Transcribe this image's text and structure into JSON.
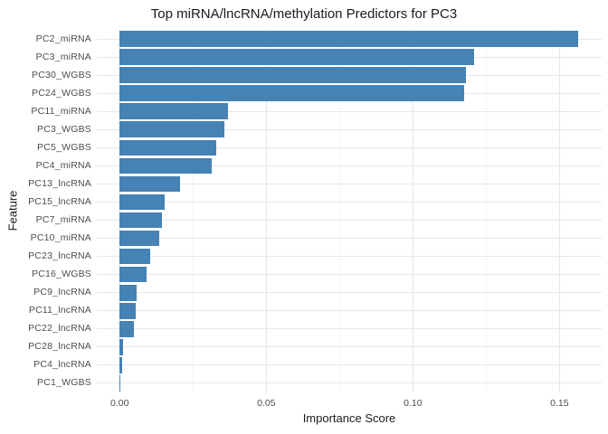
{
  "chart_data": {
    "type": "bar",
    "orientation": "horizontal",
    "title": "Top miRNA/lncRNA/methylation Predictors for PC3",
    "xlabel": "Importance Score",
    "ylabel": "Feature",
    "categories": [
      "PC2_miRNA",
      "PC3_miRNA",
      "PC30_WGBS",
      "PC24_WGBS",
      "PC11_miRNA",
      "PC3_WGBS",
      "PC5_WGBS",
      "PC4_miRNA",
      "PC13_lncRNA",
      "PC15_lncRNA",
      "PC7_miRNA",
      "PC10_miRNA",
      "PC23_lncRNA",
      "PC16_WGBS",
      "PC9_lncRNA",
      "PC11_lncRNA",
      "PC22_lncRNA",
      "PC28_lncRNA",
      "PC4_lncRNA",
      "PC1_WGBS"
    ],
    "values": [
      0.1565,
      0.121,
      0.1181,
      0.1174,
      0.0368,
      0.0357,
      0.0329,
      0.0314,
      0.0206,
      0.0153,
      0.0144,
      0.0135,
      0.0105,
      0.0092,
      0.0057,
      0.0054,
      0.0048,
      0.0012,
      0.0008,
      0.0002
    ],
    "bar_color": "#4682b4",
    "x_axis": {
      "tick_values": [
        0,
        0.05,
        0.1,
        0.15
      ],
      "tick_labels": [
        "0.00",
        "0.05",
        "0.10",
        "0.15"
      ],
      "minor_tick_values": [
        0.025,
        0.075,
        0.125
      ],
      "range": [
        -0.0078,
        0.1644
      ]
    },
    "grid": {
      "major_color": "#e5e5e5",
      "minor_color": "#f2f2f2",
      "background": "#ffffff"
    },
    "legend": "none"
  }
}
